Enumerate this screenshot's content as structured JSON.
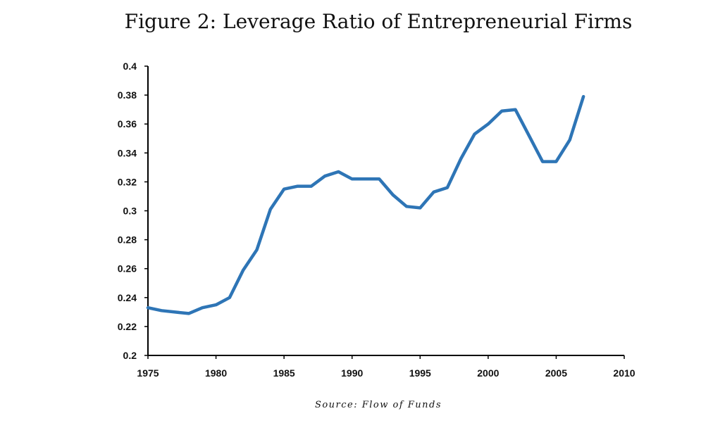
{
  "chart_data": {
    "type": "line",
    "title": "Figure 2: Leverage Ratio of Entrepreneurial Firms",
    "source": "Source: Flow of Funds",
    "xlabel": "",
    "ylabel": "",
    "xlim": [
      1975,
      2010
    ],
    "ylim": [
      0.2,
      0.4
    ],
    "x_ticks": [
      "1975",
      "1980",
      "1985",
      "1990",
      "1995",
      "2000",
      "2005",
      "2010"
    ],
    "y_ticks": [
      "0.2",
      "0.22",
      "0.24",
      "0.26",
      "0.28",
      "0.3",
      "0.32",
      "0.34",
      "0.36",
      "0.38",
      "0.4"
    ],
    "grid": false,
    "legend": "none",
    "line_color": "#2e75b6",
    "series": [
      {
        "x": [
          1975,
          1976,
          1977,
          1978,
          1979,
          1980,
          1981,
          1982,
          1983,
          1984,
          1985,
          1986,
          1987,
          1988,
          1989,
          1990,
          1991,
          1992,
          1993,
          1994,
          1995,
          1996,
          1997,
          1998,
          1999,
          2000,
          2001,
          2002,
          2003,
          2004,
          2005,
          2006,
          2007
        ],
        "values": [
          0.233,
          0.231,
          0.23,
          0.229,
          0.233,
          0.235,
          0.24,
          0.259,
          0.273,
          0.301,
          0.315,
          0.317,
          0.317,
          0.324,
          0.327,
          0.322,
          0.322,
          0.322,
          0.311,
          0.303,
          0.302,
          0.313,
          0.316,
          0.336,
          0.353,
          0.36,
          0.369,
          0.37,
          0.352,
          0.334,
          0.334,
          0.349,
          0.379
        ]
      }
    ]
  }
}
